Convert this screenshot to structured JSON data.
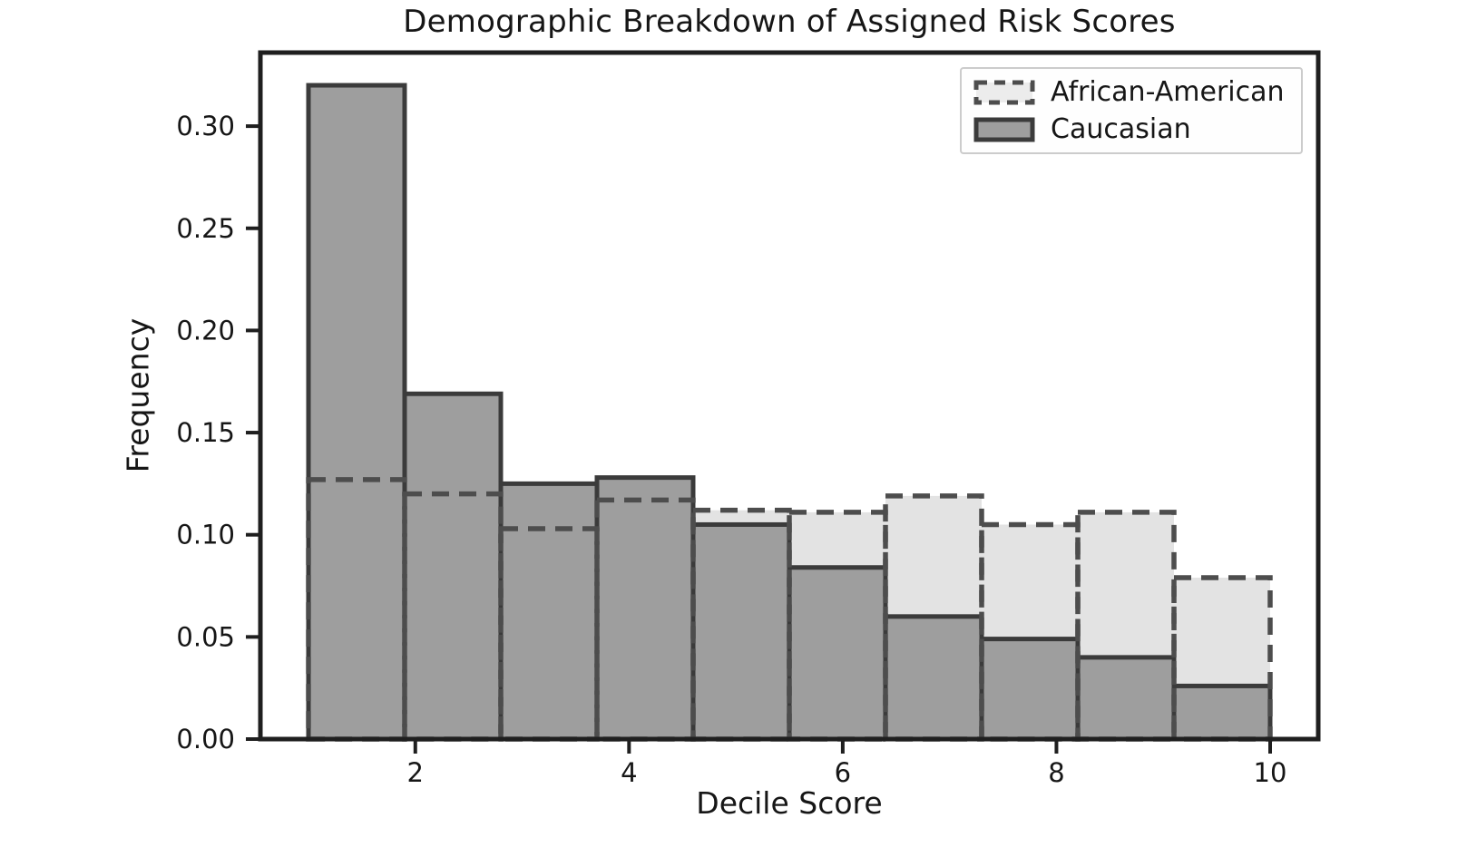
{
  "chart_data": {
    "type": "bar",
    "subtype": "overlaid-histogram",
    "title": "Demographic Breakdown of Assigned Risk Scores",
    "xlabel": "Decile Score",
    "ylabel": "Frequency",
    "categories": [
      1,
      2,
      3,
      4,
      5,
      6,
      7,
      8,
      9,
      10
    ],
    "bin_start": 1.0,
    "bin_width": 0.9,
    "series": [
      {
        "name": "African-American",
        "style": "dashed-outline",
        "fill": "#e3e3e3",
        "edge": "#4d4d4d",
        "values": [
          0.127,
          0.12,
          0.103,
          0.117,
          0.112,
          0.111,
          0.119,
          0.105,
          0.111,
          0.079
        ]
      },
      {
        "name": "Caucasian",
        "style": "solid",
        "fill": "#9e9e9e",
        "edge": "#3b3b3b",
        "values": [
          0.32,
          0.169,
          0.125,
          0.128,
          0.105,
          0.084,
          0.06,
          0.049,
          0.04,
          0.026
        ]
      }
    ],
    "xticks": [
      2,
      4,
      6,
      8,
      10
    ],
    "ytick_labels": [
      "0.00",
      "0.05",
      "0.10",
      "0.15",
      "0.20",
      "0.25",
      "0.30"
    ],
    "yticks": [
      0.0,
      0.05,
      0.1,
      0.15,
      0.2,
      0.25,
      0.3
    ],
    "xlim": [
      0.55,
      10.45
    ],
    "ylim": [
      0,
      0.336
    ],
    "grid": false,
    "legend_position": "upper right",
    "axis_color": "#1f1f1f",
    "background": "#ffffff"
  }
}
